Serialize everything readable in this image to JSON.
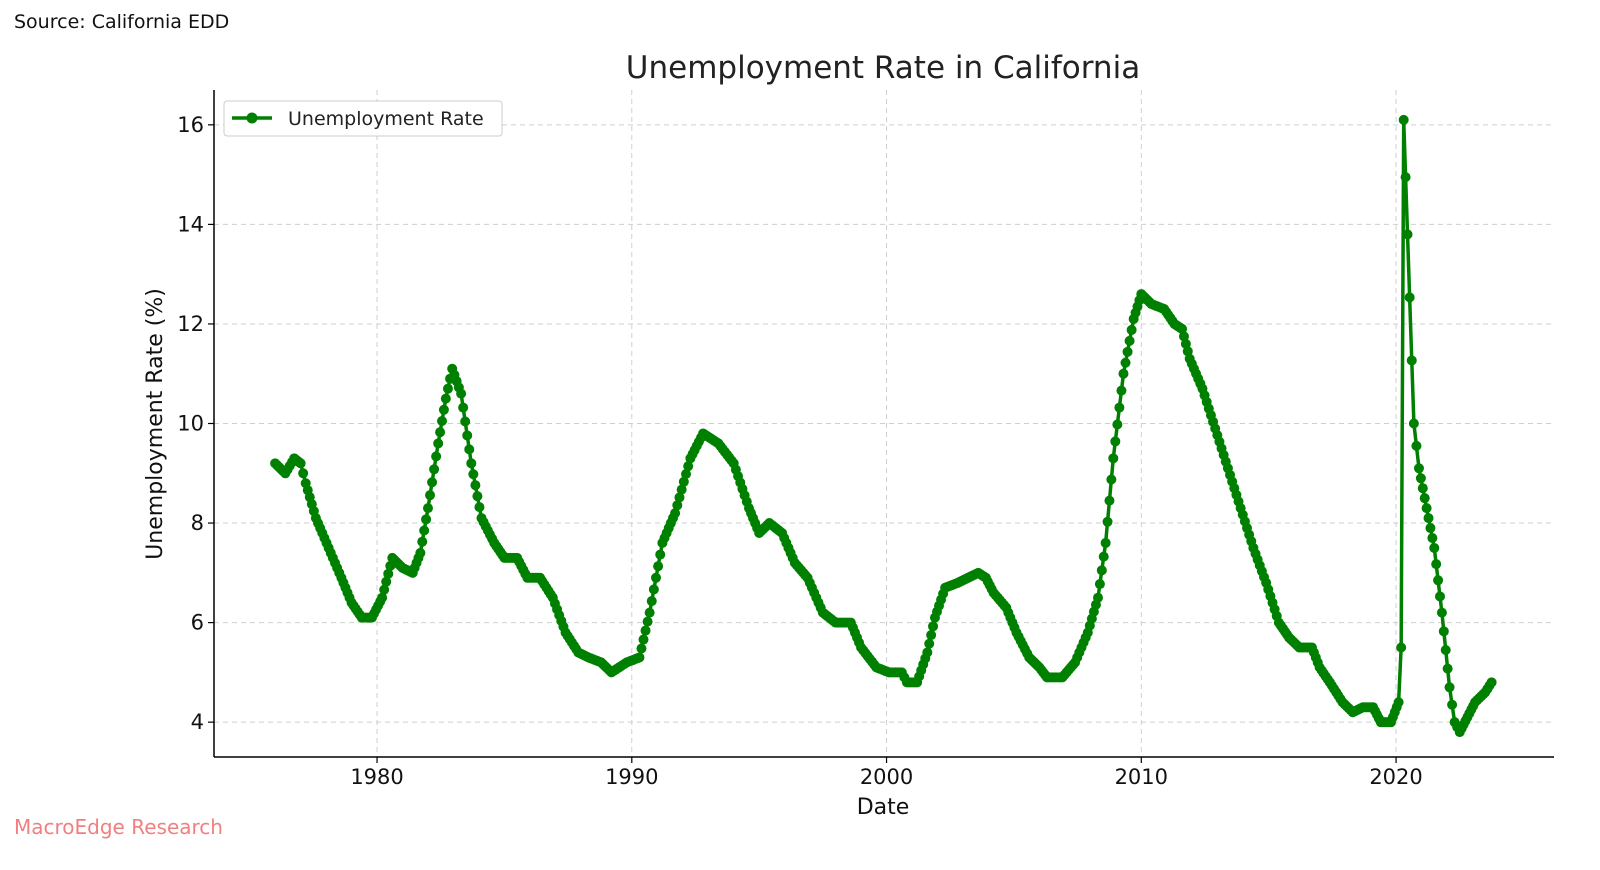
{
  "header": {
    "source": "Source: California EDD"
  },
  "footer": {
    "brand": "MacroEdge Research"
  },
  "chart_data": {
    "type": "line",
    "title": "Unemployment Rate in California",
    "xlabel": "Date",
    "ylabel": "Unemployment Rate (%)",
    "xlim": [
      1973.6,
      2026.2
    ],
    "ylim": [
      3.3,
      16.7
    ],
    "xticks": [
      1980,
      1990,
      2000,
      2010,
      2020
    ],
    "yticks": [
      4,
      6,
      8,
      10,
      12,
      14,
      16
    ],
    "grid": true,
    "legend_position": "top-left",
    "color": "#008000",
    "series": [
      {
        "name": "Unemployment Rate",
        "markers": true,
        "keypoints": [
          [
            1976.0,
            9.2
          ],
          [
            1976.4,
            9.0
          ],
          [
            1976.75,
            9.3
          ],
          [
            1977.0,
            9.2
          ],
          [
            1977.2,
            8.8
          ],
          [
            1977.6,
            8.1
          ],
          [
            1978.1,
            7.5
          ],
          [
            1978.6,
            6.9
          ],
          [
            1979.0,
            6.4
          ],
          [
            1979.4,
            6.1
          ],
          [
            1979.8,
            6.1
          ],
          [
            1980.2,
            6.5
          ],
          [
            1980.6,
            7.3
          ],
          [
            1981.0,
            7.1
          ],
          [
            1981.4,
            7.0
          ],
          [
            1981.7,
            7.4
          ],
          [
            1982.0,
            8.3
          ],
          [
            1982.4,
            9.6
          ],
          [
            1982.7,
            10.5
          ],
          [
            1982.95,
            11.1
          ],
          [
            1983.3,
            10.6
          ],
          [
            1983.7,
            9.2
          ],
          [
            1984.1,
            8.1
          ],
          [
            1984.6,
            7.6
          ],
          [
            1985.0,
            7.3
          ],
          [
            1985.5,
            7.3
          ],
          [
            1985.9,
            6.9
          ],
          [
            1986.4,
            6.9
          ],
          [
            1986.9,
            6.5
          ],
          [
            1987.4,
            5.8
          ],
          [
            1987.9,
            5.4
          ],
          [
            1988.3,
            5.3
          ],
          [
            1988.8,
            5.2
          ],
          [
            1989.2,
            5.0
          ],
          [
            1989.8,
            5.2
          ],
          [
            1990.3,
            5.3
          ],
          [
            1990.7,
            6.2
          ],
          [
            1991.2,
            7.6
          ],
          [
            1991.7,
            8.2
          ],
          [
            1992.3,
            9.3
          ],
          [
            1992.8,
            9.8
          ],
          [
            1993.4,
            9.6
          ],
          [
            1994.0,
            9.2
          ],
          [
            1994.6,
            8.3
          ],
          [
            1995.0,
            7.8
          ],
          [
            1995.4,
            8.0
          ],
          [
            1995.9,
            7.8
          ],
          [
            1996.4,
            7.2
          ],
          [
            1996.9,
            6.9
          ],
          [
            1997.5,
            6.2
          ],
          [
            1998.0,
            6.0
          ],
          [
            1998.6,
            6.0
          ],
          [
            1999.0,
            5.5
          ],
          [
            1999.6,
            5.1
          ],
          [
            2000.1,
            5.0
          ],
          [
            2000.6,
            5.0
          ],
          [
            2000.8,
            4.8
          ],
          [
            2001.2,
            4.8
          ],
          [
            2001.6,
            5.4
          ],
          [
            2001.9,
            6.1
          ],
          [
            2002.3,
            6.7
          ],
          [
            2002.8,
            6.8
          ],
          [
            2003.2,
            6.9
          ],
          [
            2003.6,
            7.0
          ],
          [
            2003.9,
            6.9
          ],
          [
            2004.2,
            6.6
          ],
          [
            2004.7,
            6.3
          ],
          [
            2005.1,
            5.8
          ],
          [
            2005.6,
            5.3
          ],
          [
            2006.0,
            5.1
          ],
          [
            2006.3,
            4.9
          ],
          [
            2006.9,
            4.9
          ],
          [
            2007.4,
            5.2
          ],
          [
            2007.9,
            5.8
          ],
          [
            2008.3,
            6.5
          ],
          [
            2008.6,
            7.6
          ],
          [
            2008.9,
            9.3
          ],
          [
            2009.3,
            11.0
          ],
          [
            2009.7,
            12.1
          ],
          [
            2010.0,
            12.6
          ],
          [
            2010.4,
            12.4
          ],
          [
            2010.9,
            12.3
          ],
          [
            2011.3,
            12.0
          ],
          [
            2011.6,
            11.9
          ],
          [
            2011.9,
            11.3
          ],
          [
            2012.4,
            10.7
          ],
          [
            2012.9,
            9.9
          ],
          [
            2013.4,
            9.1
          ],
          [
            2013.9,
            8.3
          ],
          [
            2014.4,
            7.5
          ],
          [
            2014.9,
            6.8
          ],
          [
            2015.4,
            6.0
          ],
          [
            2015.8,
            5.7
          ],
          [
            2016.2,
            5.5
          ],
          [
            2016.7,
            5.5
          ],
          [
            2017.0,
            5.1
          ],
          [
            2017.4,
            4.8
          ],
          [
            2017.9,
            4.4
          ],
          [
            2018.3,
            4.2
          ],
          [
            2018.7,
            4.3
          ],
          [
            2019.1,
            4.3
          ],
          [
            2019.4,
            4.0
          ],
          [
            2019.8,
            4.0
          ],
          [
            2020.1,
            4.4
          ],
          [
            2020.2,
            5.5
          ],
          [
            2020.3,
            16.1
          ],
          [
            2020.45,
            13.8
          ],
          [
            2020.7,
            10.0
          ],
          [
            2020.9,
            9.1
          ],
          [
            2021.2,
            8.3
          ],
          [
            2021.5,
            7.5
          ],
          [
            2021.8,
            6.2
          ],
          [
            2022.1,
            4.7
          ],
          [
            2022.3,
            4.0
          ],
          [
            2022.5,
            3.8
          ],
          [
            2022.8,
            4.1
          ],
          [
            2023.1,
            4.4
          ],
          [
            2023.5,
            4.6
          ],
          [
            2023.75,
            4.8
          ]
        ]
      }
    ]
  }
}
